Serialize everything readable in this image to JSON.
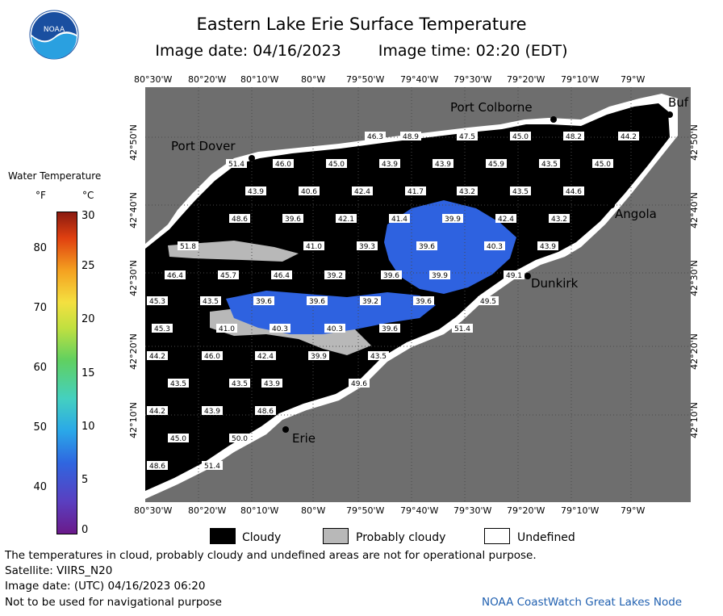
{
  "header": {
    "title": "Eastern Lake Erie Surface Temperature",
    "image_date": "Image date: 04/16/2023",
    "image_time": "Image time: 02:20 (EDT)",
    "logo_text": "NOAA"
  },
  "axes": {
    "lon_ticks": [
      "80°30'W",
      "80°20'W",
      "80°10'W",
      "80°W",
      "79°50'W",
      "79°40'W",
      "79°30'W",
      "79°20'W",
      "79°10'W",
      "79°W"
    ],
    "lat_ticks": [
      "42°50'N",
      "42°40'N",
      "42°30'N",
      "42°20'N",
      "42°10'N"
    ]
  },
  "colors": {
    "land": "#6e6e6e",
    "cloud": "#000000",
    "water_blue": "#2e62e0",
    "probably_cloudy": "#b8b8b8",
    "undefined": "#ffffff",
    "grid": "#4a4a4a",
    "credit": "#2060b0"
  },
  "cities": [
    {
      "name": "Port Colborne"
    },
    {
      "name": "Port Dover"
    },
    {
      "name": "Buf"
    },
    {
      "name": "Angola"
    },
    {
      "name": "Dunkirk"
    },
    {
      "name": "Erie"
    }
  ],
  "temperature_labels": [
    [
      "46.3",
      "48.9",
      "47.5",
      "45.0",
      "48.2",
      "44.2"
    ],
    [
      "51.4",
      "46.0",
      "45.0",
      "43.9",
      "43.9",
      "45.9",
      "43.5",
      "45.0"
    ],
    [
      "43.9",
      "40.6",
      "42.4",
      "41.7",
      "43.2",
      "43.5",
      "44.6"
    ],
    [
      "48.6",
      "39.6",
      "42.1",
      "41.4",
      "39.9",
      "42.4",
      "43.2"
    ],
    [
      "51.8",
      "41.0",
      "39.3",
      "39.6",
      "40.3",
      "43.9"
    ],
    [
      "46.4",
      "45.7",
      "46.4",
      "39.2",
      "39.6",
      "39.9",
      "49.1"
    ],
    [
      "45.3",
      "43.5",
      "39.6",
      "39.6",
      "39.2",
      "39.6",
      "49.5"
    ],
    [
      "45.3",
      "41.0",
      "40.3",
      "40.3",
      "39.6",
      "51.4"
    ],
    [
      "44.2",
      "46.0",
      "42.4",
      "39.9",
      "43.5"
    ],
    [
      "43.5",
      "43.5",
      "43.9",
      "49.6"
    ],
    [
      "44.2",
      "43.9",
      "48.6"
    ],
    [
      "45.0",
      "50.0"
    ],
    [
      "48.6",
      "51.4"
    ]
  ],
  "legend": {
    "title": "Water Temperature",
    "unit_f": "°F",
    "unit_c": "°C",
    "f_ticks": [
      "80",
      "70",
      "60",
      "50",
      "40"
    ],
    "c_ticks": [
      "30",
      "25",
      "20",
      "15",
      "10",
      "5",
      "0"
    ],
    "cloudy": "Cloudy",
    "probably_cloudy": "Probably cloudy",
    "undefined": "Undefined"
  },
  "footer": {
    "disclaimer": "The temperatures in cloud, probably cloudy and undefined areas are not for operational purpose.",
    "satellite": "Satellite: VIIRS_N20",
    "utc_date": "Image date: (UTC) 04/16/2023  06:20",
    "nav": "Not to be used for navigational purpose",
    "credit": "NOAA CoastWatch Great Lakes Node"
  }
}
